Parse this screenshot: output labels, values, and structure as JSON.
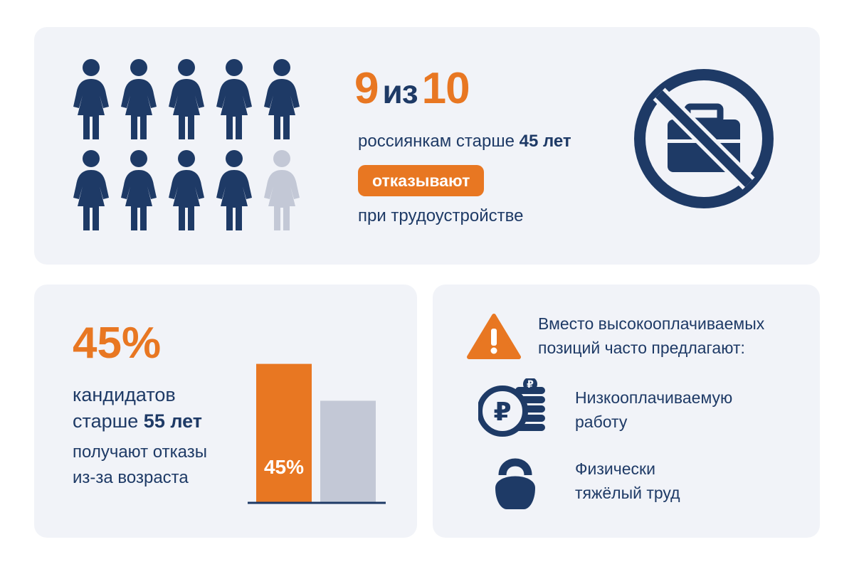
{
  "top": {
    "people_total": 10,
    "people_highlighted": 9,
    "stat_left": "9",
    "stat_mid": "из",
    "stat_right": "10",
    "line1_text": "россиянкам старше",
    "line1_bold": "45 лет",
    "badge": "отказывают",
    "line3": "при трудоустройстве",
    "icon": "no-briefcase-icon"
  },
  "left": {
    "stat": "45%",
    "line1": "кандидатов",
    "line2_text": "старше",
    "line2_bold": "55 лет",
    "line3": "получают отказы",
    "line4": "из-за возраста"
  },
  "chart_data": {
    "type": "bar",
    "categories": [
      "",
      ""
    ],
    "values": [
      45,
      33
    ],
    "data_labels": [
      "45%",
      ""
    ],
    "ylim": [
      0,
      50
    ],
    "colors": [
      "#e87722",
      "#c3c8d6"
    ]
  },
  "right": {
    "heading_line1": "Вместо высокооплачиваемых",
    "heading_line2": "позиций часто предлагают:",
    "warning_icon": "warning-triangle-icon",
    "items": [
      {
        "icon": "ruble-coins-icon",
        "line1": "Низкооплачиваемую",
        "line2": "работу"
      },
      {
        "icon": "kettlebell-icon",
        "line1": "Физически",
        "line2": "тяжёлый труд"
      }
    ]
  },
  "colors": {
    "accent": "#e87722",
    "navy": "#1e3a66",
    "muted": "#c3c8d6",
    "card": "#f1f3f8"
  }
}
